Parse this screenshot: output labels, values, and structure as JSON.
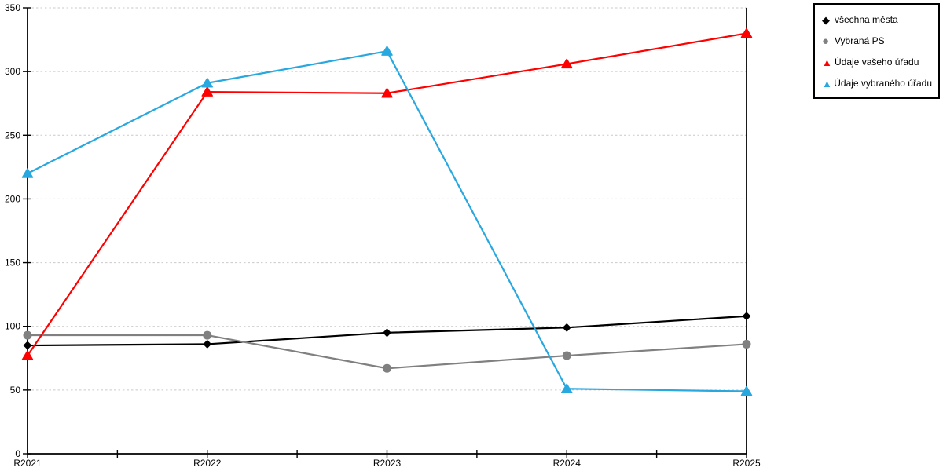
{
  "chart_data": {
    "type": "line",
    "title": "",
    "xlabel": "",
    "ylabel": "",
    "categories": [
      "R2021",
      "R2022",
      "R2023",
      "R2024",
      "R2025"
    ],
    "series": [
      {
        "name": "všechna města",
        "marker": "diamond",
        "color": "#000000",
        "values": [
          85,
          86,
          95,
          99,
          108
        ]
      },
      {
        "name": "Vybraná PS",
        "marker": "circle",
        "color": "#808080",
        "values": [
          93,
          93,
          67,
          77,
          86
        ]
      },
      {
        "name": "Údaje vašeho úřadu",
        "marker": "triangle",
        "color": "#ff0000",
        "values": [
          77,
          284,
          283,
          306,
          330
        ]
      },
      {
        "name": "Údaje vybraného úřadu",
        "marker": "triangle",
        "color": "#29a8e0",
        "values": [
          220,
          291,
          316,
          51,
          49
        ]
      }
    ],
    "ylim": [
      0,
      350
    ],
    "yticks": [
      0,
      50,
      100,
      150,
      200,
      250,
      300,
      350
    ],
    "grid": "horizontal-dashed",
    "gridline_color": "#c9c9c9",
    "axis_color": "#000000",
    "minor_x_ticks_between_categories": true,
    "legend_position": "top-right"
  },
  "icons": {
    "diamond": "◆",
    "circle": "●",
    "triangle": "▲"
  }
}
